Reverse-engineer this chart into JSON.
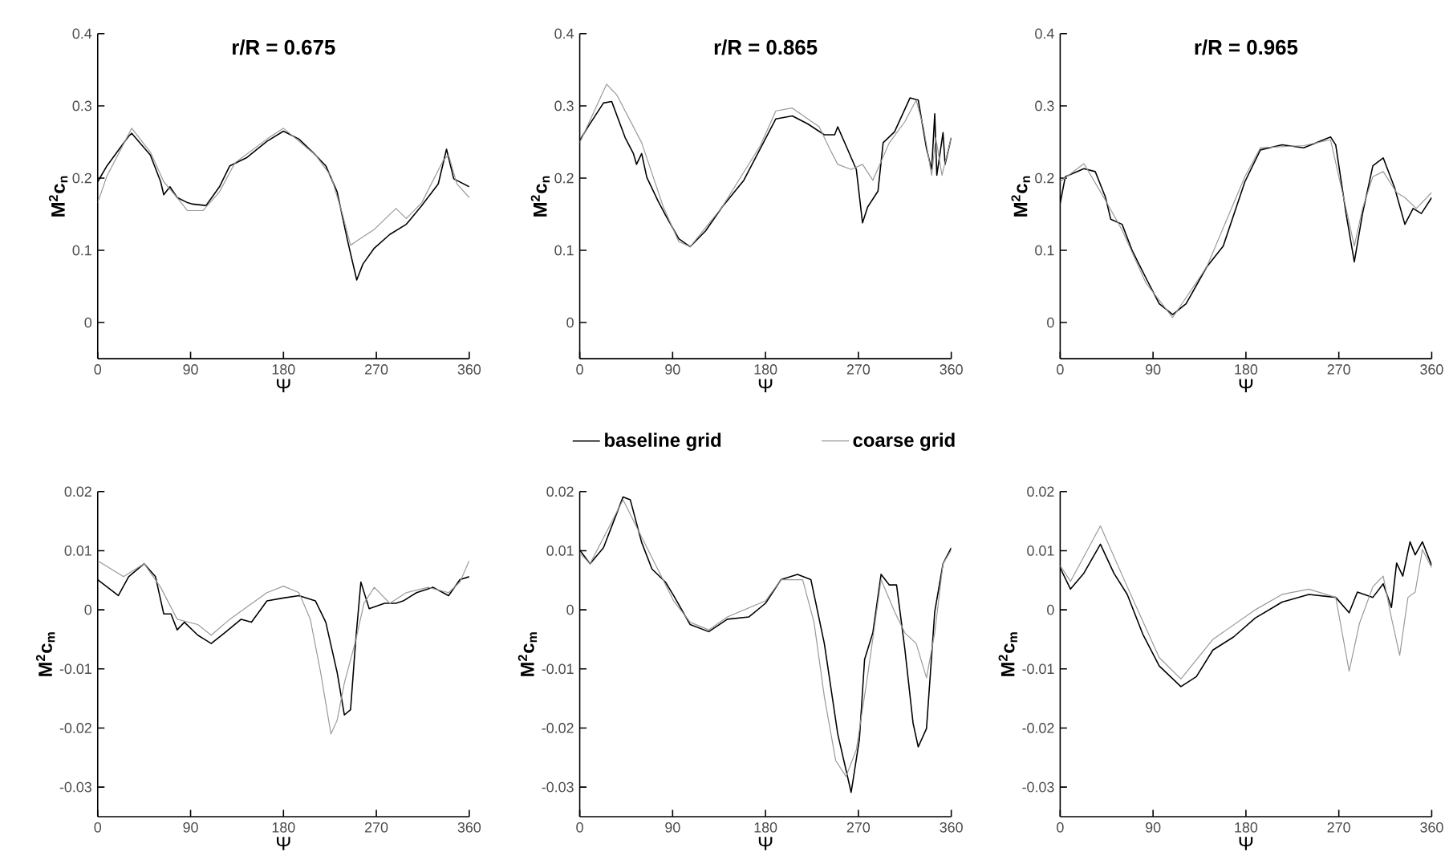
{
  "chart_data": [
    {
      "type": "line",
      "title": "r/R = 0.675",
      "xlabel": "Ψ",
      "ylabel": "M$^{2}$c$_{n}$",
      "xlim": [
        0,
        360
      ],
      "ylim": [
        -0.05,
        0.4
      ],
      "xticks": [
        0,
        90,
        180,
        270,
        360
      ],
      "yticks": [
        0,
        0.1,
        0.2,
        0.3,
        0.4
      ],
      "series": [
        {
          "color": "#000000",
          "x": [
            0,
            9,
            30,
            33,
            51,
            61,
            64,
            70,
            77,
            87,
            92,
            105,
            118,
            128,
            144,
            164,
            180,
            195,
            211,
            221,
            232,
            242,
            251,
            257,
            268,
            283,
            299,
            314,
            330,
            338,
            345,
            360
          ],
          "values": [
            0.195,
            0.217,
            0.258,
            0.262,
            0.232,
            0.195,
            0.177,
            0.188,
            0.173,
            0.166,
            0.164,
            0.162,
            0.188,
            0.217,
            0.228,
            0.251,
            0.265,
            0.254,
            0.232,
            0.217,
            0.181,
            0.114,
            0.059,
            0.081,
            0.103,
            0.122,
            0.136,
            0.162,
            0.192,
            0.24,
            0.199,
            0.188
          ]
        },
        {
          "color": "#999999",
          "x": [
            0,
            9,
            33,
            51,
            64,
            77,
            87,
            102,
            118,
            133,
            164,
            180,
            211,
            226,
            237,
            245,
            252,
            268,
            289,
            299,
            314,
            335,
            340,
            348,
            360
          ],
          "values": [
            0.166,
            0.203,
            0.269,
            0.236,
            0.195,
            0.173,
            0.155,
            0.155,
            0.181,
            0.221,
            0.254,
            0.269,
            0.232,
            0.203,
            0.151,
            0.107,
            0.114,
            0.129,
            0.158,
            0.144,
            0.166,
            0.225,
            0.232,
            0.192,
            0.173
          ]
        }
      ]
    },
    {
      "type": "line",
      "title": "r/R = 0.865",
      "xlabel": "Ψ",
      "ylabel": "M$^{2}$c$_{n}$",
      "xlim": [
        0,
        360
      ],
      "ylim": [
        -0.05,
        0.4
      ],
      "xticks": [
        0,
        90,
        180,
        270,
        360
      ],
      "yticks": [
        0,
        0.1,
        0.2,
        0.3,
        0.4
      ],
      "series": [
        {
          "color": "#000000",
          "x": [
            0,
            8,
            23,
            31,
            44,
            52,
            55,
            60,
            65,
            76,
            83,
            96,
            107,
            122,
            138,
            159,
            175,
            190,
            206,
            221,
            237,
            247,
            250,
            258,
            268,
            274,
            279,
            289,
            294,
            305,
            320,
            328,
            336,
            341,
            344,
            346,
            352,
            354,
            360
          ],
          "values": [
            0.252,
            0.271,
            0.304,
            0.306,
            0.256,
            0.234,
            0.219,
            0.234,
            0.201,
            0.168,
            0.149,
            0.116,
            0.105,
            0.127,
            0.16,
            0.197,
            0.241,
            0.282,
            0.286,
            0.275,
            0.26,
            0.26,
            0.271,
            0.245,
            0.212,
            0.138,
            0.16,
            0.182,
            0.249,
            0.264,
            0.311,
            0.308,
            0.241,
            0.212,
            0.289,
            0.204,
            0.263,
            0.219,
            0.256
          ]
        },
        {
          "color": "#999999",
          "x": [
            0,
            26,
            36,
            60,
            81,
            96,
            107,
            138,
            175,
            190,
            206,
            232,
            242,
            250,
            263,
            274,
            284,
            300,
            315,
            326,
            333,
            341,
            345,
            351,
            360
          ],
          "values": [
            0.249,
            0.33,
            0.315,
            0.249,
            0.16,
            0.112,
            0.105,
            0.16,
            0.245,
            0.293,
            0.297,
            0.271,
            0.241,
            0.219,
            0.212,
            0.219,
            0.197,
            0.249,
            0.278,
            0.308,
            0.271,
            0.204,
            0.256,
            0.204,
            0.256
          ]
        }
      ]
    },
    {
      "type": "line",
      "title": "r/R = 0.965",
      "xlabel": "Ψ",
      "ylabel": "M$^{2}$c$_{n}$",
      "xlim": [
        0,
        360
      ],
      "ylim": [
        -0.05,
        0.4
      ],
      "xticks": [
        0,
        90,
        180,
        270,
        360
      ],
      "yticks": [
        0,
        0.1,
        0.2,
        0.3,
        0.4
      ],
      "series": [
        {
          "color": "#000000",
          "x": [
            0,
            5,
            23,
            34,
            44,
            49,
            60,
            70,
            83,
            96,
            109,
            122,
            142,
            158,
            179,
            194,
            215,
            236,
            262,
            267,
            277,
            285,
            293,
            303,
            313,
            324,
            334,
            342,
            350,
            360
          ],
          "values": [
            0.165,
            0.202,
            0.213,
            0.209,
            0.173,
            0.143,
            0.136,
            0.099,
            0.062,
            0.026,
            0.011,
            0.026,
            0.077,
            0.106,
            0.195,
            0.239,
            0.246,
            0.242,
            0.257,
            0.246,
            0.151,
            0.084,
            0.151,
            0.217,
            0.228,
            0.187,
            0.136,
            0.158,
            0.151,
            0.173
          ]
        },
        {
          "color": "#999999",
          "x": [
            0,
            23,
            44,
            60,
            83,
            109,
            142,
            179,
            194,
            236,
            262,
            277,
            285,
            293,
            303,
            313,
            326,
            334,
            345,
            360
          ],
          "values": [
            0.195,
            0.22,
            0.169,
            0.128,
            0.055,
            0.007,
            0.077,
            0.202,
            0.242,
            0.245,
            0.253,
            0.158,
            0.106,
            0.158,
            0.202,
            0.209,
            0.18,
            0.173,
            0.158,
            0.18
          ]
        }
      ]
    },
    {
      "type": "line",
      "xlabel": "Ψ",
      "ylabel": "M$^{2}$c$_{m}$",
      "xlim": [
        0,
        360
      ],
      "ylim": [
        -0.035,
        0.02
      ],
      "xticks": [
        0,
        90,
        180,
        270,
        360
      ],
      "yticks": [
        -0.03,
        -0.02,
        -0.01,
        0,
        0.01,
        0.02
      ],
      "series": [
        {
          "color": "#000000",
          "x": [
            0,
            20,
            30,
            45,
            56,
            64,
            71,
            77,
            84,
            97,
            110,
            123,
            139,
            149,
            164,
            180,
            195,
            211,
            221,
            232,
            239,
            245,
            250,
            255,
            263,
            278,
            289,
            296,
            309,
            325,
            340,
            351,
            360
          ],
          "values": [
            0.0051,
            0.0024,
            0.0056,
            0.0078,
            0.0056,
            -0.0007,
            -0.0007,
            -0.0034,
            -0.0021,
            -0.0043,
            -0.0057,
            -0.0039,
            -0.0016,
            -0.0021,
            0.0015,
            0.002,
            0.0024,
            0.0015,
            -0.0021,
            -0.0106,
            -0.0178,
            -0.0169,
            -0.0052,
            0.0047,
            0.0002,
            0.0011,
            0.0011,
            0.0015,
            0.0029,
            0.0038,
            0.0024,
            0.0051,
            0.0056
          ]
        },
        {
          "color": "#999999",
          "x": [
            0,
            25,
            45,
            61,
            77,
            97,
            110,
            128,
            164,
            180,
            195,
            206,
            216,
            226,
            232,
            239,
            250,
            258,
            268,
            283,
            299,
            320,
            340,
            351,
            360
          ],
          "values": [
            0.0083,
            0.0056,
            0.0078,
            0.0038,
            -0.0016,
            -0.0025,
            -0.0043,
            -0.0016,
            0.0029,
            0.004,
            0.0029,
            -0.0016,
            -0.0106,
            -0.021,
            -0.0187,
            -0.0124,
            -0.0052,
            0.0011,
            0.0038,
            0.0011,
            0.0029,
            0.0038,
            0.0029,
            0.0047,
            0.0083
          ]
        }
      ]
    },
    {
      "type": "line",
      "xlabel": "Ψ",
      "ylabel": "M$^{2}$c$_{m}$",
      "xlim": [
        0,
        360
      ],
      "ylim": [
        -0.035,
        0.02
      ],
      "xticks": [
        0,
        90,
        180,
        270,
        360
      ],
      "yticks": [
        -0.03,
        -0.02,
        -0.01,
        0,
        0.01,
        0.02
      ],
      "legend": "top",
      "series": [
        {
          "name": "baseline grid",
          "color": "#000000",
          "x": [
            0,
            10,
            23,
            42,
            49,
            60,
            70,
            83,
            91,
            107,
            125,
            143,
            164,
            180,
            195,
            211,
            224,
            237,
            250,
            263,
            271,
            276,
            284,
            292,
            300,
            307,
            315,
            323,
            328,
            336,
            344,
            352,
            360
          ],
          "values": [
            0.0101,
            0.0078,
            0.0105,
            0.0191,
            0.0186,
            0.0114,
            0.0069,
            0.0047,
            0.0024,
            -0.0025,
            -0.0037,
            -0.0016,
            -0.0012,
            0.0011,
            0.0051,
            0.006,
            0.0051,
            -0.0057,
            -0.021,
            -0.0309,
            -0.0219,
            -0.0084,
            -0.0039,
            0.006,
            0.0042,
            0.0042,
            -0.0066,
            -0.0192,
            -0.0232,
            -0.0201,
            -0.0003,
            0.0078,
            0.0105
          ]
        },
        {
          "name": "coarse grid",
          "color": "#999999",
          "x": [
            0,
            10,
            42,
            60,
            91,
            107,
            125,
            143,
            180,
            195,
            216,
            227,
            237,
            248,
            258,
            268,
            279,
            292,
            305,
            315,
            326,
            336,
            344,
            352,
            360
          ],
          "values": [
            0.0096,
            0.0078,
            0.0186,
            0.0123,
            0.0015,
            -0.0021,
            -0.0034,
            -0.0012,
            0.0015,
            0.0051,
            0.0051,
            -0.0021,
            -0.0147,
            -0.0255,
            -0.0282,
            -0.0237,
            -0.0111,
            0.0051,
            -0.0003,
            -0.0039,
            -0.0057,
            -0.0115,
            -0.0039,
            0.0078,
            0.0101
          ]
        }
      ]
    },
    {
      "type": "line",
      "xlabel": "Ψ",
      "ylabel": "M$^{2}$c$_{m}$",
      "xlim": [
        0,
        360
      ],
      "ylim": [
        -0.035,
        0.02
      ],
      "xticks": [
        0,
        90,
        180,
        270,
        360
      ],
      "yticks": [
        -0.03,
        -0.02,
        -0.01,
        0,
        0.01,
        0.02
      ],
      "series": [
        {
          "color": "#000000",
          "x": [
            0,
            10,
            23,
            39,
            52,
            65,
            80,
            96,
            117,
            132,
            148,
            168,
            189,
            215,
            241,
            267,
            280,
            288,
            303,
            313,
            321,
            326,
            332,
            339,
            344,
            351,
            360
          ],
          "values": [
            0.0071,
            0.0035,
            0.0062,
            0.0111,
            0.0062,
            0.0026,
            -0.0041,
            -0.0095,
            -0.013,
            -0.0113,
            -0.0068,
            -0.0046,
            -0.0014,
            0.0013,
            0.0026,
            0.0021,
            -0.0005,
            0.003,
            0.0021,
            0.0044,
            0.0004,
            0.0079,
            0.0057,
            0.0115,
            0.0093,
            0.0115,
            0.0075
          ]
        },
        {
          "color": "#999999",
          "x": [
            0,
            10,
            39,
            65,
            96,
            117,
            148,
            189,
            215,
            241,
            267,
            280,
            290,
            303,
            313,
            321,
            329,
            337,
            344,
            351,
            360
          ],
          "values": [
            0.0075,
            0.0048,
            0.0142,
            0.0039,
            -0.0081,
            -0.0117,
            -0.005,
            0.0,
            0.0026,
            0.0035,
            0.0021,
            -0.0104,
            -0.0023,
            0.0039,
            0.0057,
            -0.0014,
            -0.0077,
            0.0021,
            0.003,
            0.0102,
            0.0071
          ]
        }
      ]
    }
  ]
}
